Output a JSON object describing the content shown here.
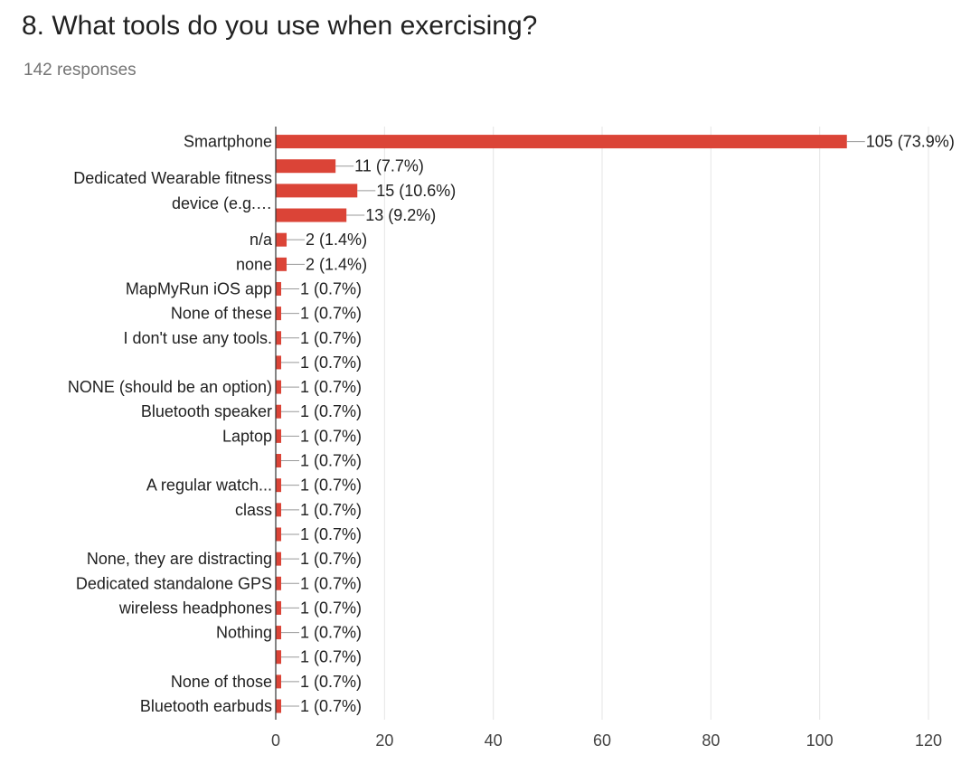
{
  "header": {
    "question": "8. What tools do you use when exercising?",
    "responses": "142 responses"
  },
  "colors": {
    "bar": "#db4437",
    "grid": "#e5e5e5",
    "axis": "#333333",
    "leader": "#999999"
  },
  "chart_data": {
    "type": "bar",
    "orientation": "horizontal",
    "title": "8. What tools do you use when exercising?",
    "xlim": [
      0,
      120
    ],
    "xticks": [
      0,
      20,
      40,
      60,
      80,
      100,
      120
    ],
    "grid": true,
    "categories": [
      "Smartphone",
      "",
      "",
      "",
      "n/a",
      "none",
      "MapMyRun iOS app",
      "None of these",
      "I don't use any tools.",
      "",
      "NONE (should be an option)",
      "Bluetooth speaker",
      "Laptop",
      "",
      "A regular watch...",
      "class",
      "",
      "None, they are distracting",
      "Dedicated standalone GPS",
      "wireless headphones",
      "Nothing",
      "",
      "None of those",
      "Bluetooth earbuds"
    ],
    "group_labels": [
      {
        "rows": [
          1,
          3
        ],
        "lines": [
          "Dedicated Wearable fitness",
          "device (e.g.…"
        ]
      }
    ],
    "values": [
      105,
      11,
      15,
      13,
      2,
      2,
      1,
      1,
      1,
      1,
      1,
      1,
      1,
      1,
      1,
      1,
      1,
      1,
      1,
      1,
      1,
      1,
      1,
      1
    ],
    "data_labels": [
      "105 (73.9%)",
      "11 (7.7%)",
      "15 (10.6%)",
      "13 (9.2%)",
      "2 (1.4%)",
      "2 (1.4%)",
      "1 (0.7%)",
      "1 (0.7%)",
      "1 (0.7%)",
      "1 (0.7%)",
      "1 (0.7%)",
      "1 (0.7%)",
      "1 (0.7%)",
      "1 (0.7%)",
      "1 (0.7%)",
      "1 (0.7%)",
      "1 (0.7%)",
      "1 (0.7%)",
      "1 (0.7%)",
      "1 (0.7%)",
      "1 (0.7%)",
      "1 (0.7%)",
      "1 (0.7%)",
      "1 (0.7%)"
    ]
  }
}
